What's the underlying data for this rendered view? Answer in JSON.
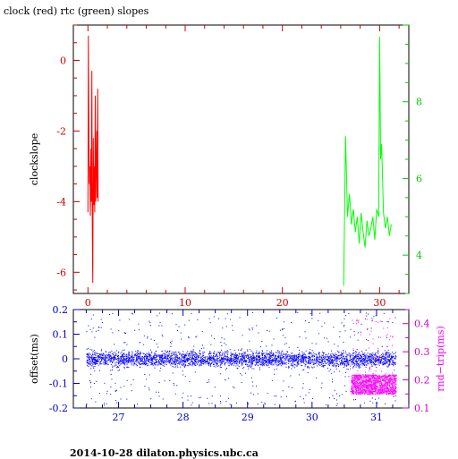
{
  "title": "clock (red) rtc (green) slopes",
  "footer": "2014-10-28  dilaton.physics.ubc.ca",
  "colors": {
    "axis": "#000000",
    "red": "#ff0000",
    "green": "#00ff00",
    "blue": "#0000ff",
    "magenta": "#ff00ff",
    "red_tick": "#cc0000",
    "green_tick": "#00cc00",
    "blue_tick": "#0000cc",
    "magenta_tick": "#cc00cc"
  },
  "chart_data": [
    {
      "type": "line",
      "ylabel": "clockslope",
      "xlim": [
        -1.5,
        33
      ],
      "ylim_left": [
        -6.6,
        1.0
      ],
      "ylim_right": [
        3.0,
        10.0
      ],
      "x_ticks": [
        0,
        10,
        20,
        30
      ],
      "y_ticks_left": [
        0,
        -2,
        -4,
        -6
      ],
      "y_ticks_right": [
        4,
        6,
        8
      ],
      "series": [
        {
          "axis": "left",
          "color": "red",
          "x": [
            0.0,
            0.05,
            0.1,
            0.15,
            0.2,
            0.25,
            0.3,
            0.35,
            0.4,
            0.45,
            0.5,
            0.55,
            0.6,
            0.65,
            0.7,
            0.75,
            0.8,
            0.85,
            0.9,
            0.95,
            1.0,
            1.05
          ],
          "y": [
            -4.3,
            0.7,
            -2.3,
            -3.5,
            -3.0,
            -4.4,
            -2.5,
            -4.0,
            -0.3,
            -4.8,
            -6.3,
            -2.2,
            -4.1,
            -3.0,
            -4.3,
            -1.0,
            -4.0,
            -3.2,
            -2.0,
            -3.9,
            -0.8,
            -4.0
          ]
        },
        {
          "axis": "right",
          "color": "green",
          "x": [
            26.3,
            26.5,
            26.7,
            26.9,
            27.1,
            27.3,
            27.5,
            27.7,
            27.9,
            28.1,
            28.3,
            28.5,
            28.7,
            28.9,
            29.1,
            29.3,
            29.5,
            29.7,
            29.9,
            30.0,
            30.1,
            30.2,
            30.4,
            30.6,
            30.8,
            31.0,
            31.2
          ],
          "y": [
            3.2,
            7.1,
            5.0,
            5.6,
            4.8,
            5.2,
            4.6,
            5.0,
            4.3,
            5.1,
            4.6,
            4.2,
            4.9,
            4.5,
            4.7,
            5.0,
            4.4,
            5.2,
            5.0,
            9.7,
            6.5,
            6.9,
            5.1,
            4.7,
            5.0,
            4.5,
            4.8
          ]
        }
      ]
    },
    {
      "type": "scatter",
      "ylabel": "offset(ms)",
      "ylabel_right": "rnd−trip(ms)",
      "xlim": [
        26.3,
        31.5
      ],
      "ylim_left": [
        -0.2,
        0.2
      ],
      "ylim_right": [
        0.1,
        0.45
      ],
      "x_ticks": [
        27,
        28,
        29,
        30,
        31
      ],
      "y_ticks_left": [
        0.2,
        0.1,
        0,
        -0.1,
        -0.2
      ],
      "y_ticks_right": [
        0.4,
        0.3,
        0.2,
        0.1
      ],
      "series": [
        {
          "axis": "left",
          "color": "blue",
          "x_range": [
            26.5,
            31.3
          ],
          "center": 0.0,
          "band": 0.03,
          "outlier_span": 0.2
        },
        {
          "axis": "right",
          "color": "magenta",
          "x_range": [
            30.6,
            31.3
          ],
          "y_range": [
            0.15,
            0.22
          ]
        }
      ]
    }
  ]
}
